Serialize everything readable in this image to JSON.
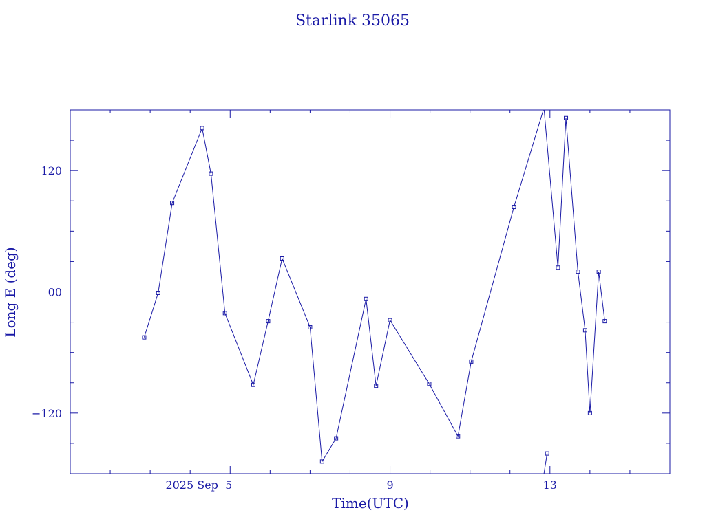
{
  "chart_data": {
    "type": "line",
    "title": "Starlink 35065",
    "xlabel": "Time(UTC)",
    "ylabel": "Long E (deg)",
    "x_unit": "day of September 2025",
    "xlim": [
      1.0,
      16.0
    ],
    "ylim": [
      -180,
      180
    ],
    "y_ticks": [
      -120,
      0,
      120
    ],
    "y_tick_labels": [
      "−120",
      "00",
      "120"
    ],
    "x_ticks": [
      5,
      9,
      13
    ],
    "x_tick_labels": [
      "2025 Sep  5",
      "9",
      "13"
    ],
    "grid": false,
    "legend": "none",
    "color": "#1a1aa6",
    "series": [
      {
        "points": [
          [
            2.85,
            -45
          ],
          [
            3.2,
            -1
          ],
          [
            3.55,
            88
          ],
          [
            4.3,
            162
          ],
          [
            4.52,
            117
          ],
          [
            4.87,
            -21
          ],
          [
            5.58,
            -92
          ],
          [
            5.95,
            -29
          ],
          [
            6.3,
            33
          ],
          [
            7.0,
            -35
          ],
          [
            7.3,
            -168
          ],
          [
            7.65,
            -145
          ],
          [
            8.4,
            -7
          ],
          [
            8.65,
            -93
          ],
          [
            9.0,
            -28
          ],
          [
            9.98,
            -91
          ],
          [
            10.7,
            -143
          ],
          [
            11.03,
            -69
          ],
          [
            12.1,
            84
          ],
          [
            12.85,
            182
          ]
        ]
      },
      {
        "points": [
          [
            12.85,
            182
          ],
          [
            13.2,
            24
          ],
          [
            13.4,
            172
          ],
          [
            13.7,
            20
          ],
          [
            13.88,
            -38
          ],
          [
            14.0,
            -120
          ],
          [
            14.22,
            20
          ],
          [
            14.37,
            -29
          ]
        ]
      },
      {
        "points": [
          [
            12.85,
            -180
          ],
          [
            12.93,
            -160
          ]
        ]
      }
    ]
  }
}
